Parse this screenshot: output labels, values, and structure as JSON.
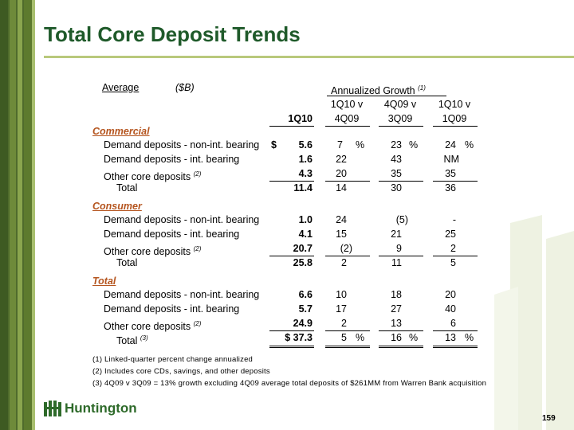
{
  "title": "Total Core Deposit Trends",
  "header": {
    "average": "Average",
    "unit": "($B)",
    "growth": "Annualized Growth",
    "growth_note": "(1)",
    "col1": "1Q10",
    "col2_top": "1Q10 v",
    "col2_bottom": "4Q09",
    "col3_top": "4Q09 v",
    "col3_bottom": "3Q09",
    "col4_top": "1Q10 v",
    "col4_bottom": "1Q09"
  },
  "sections": {
    "commercial": "Commercial",
    "consumer": "Consumer",
    "total": "Total"
  },
  "rows": {
    "com_dd_non": {
      "label": "Demand deposits - non-int. bearing",
      "cur": "$",
      "v1": "5.6",
      "v2": "7",
      "v2p": "%",
      "v3": "23",
      "v3p": "%",
      "v4": "24",
      "v4p": "%"
    },
    "com_dd_int": {
      "label": "Demand deposits - int. bearing",
      "v1": "1.6",
      "v2": "22",
      "v3": "43",
      "v4": "NM"
    },
    "com_other": {
      "label": "Other core deposits",
      "note": "(2)",
      "v1": "4.3",
      "v2": "20",
      "v3": "35",
      "v4": "35"
    },
    "com_total": {
      "label": "Total",
      "v1": "11.4",
      "v2": "14",
      "v3": "30",
      "v4": "36"
    },
    "con_dd_non": {
      "label": "Demand deposits - non-int. bearing",
      "v1": "1.0",
      "v2": "24",
      "v3": "(5)",
      "v4": "-"
    },
    "con_dd_int": {
      "label": "Demand deposits - int. bearing",
      "v1": "4.1",
      "v2": "15",
      "v3": "21",
      "v4": "25"
    },
    "con_other": {
      "label": "Other core deposits",
      "note": "(2)",
      "v1": "20.7",
      "v2": "(2)",
      "v3": "9",
      "v4": "2"
    },
    "con_total": {
      "label": "Total",
      "v1": "25.8",
      "v2": "2",
      "v3": "11",
      "v4": "5"
    },
    "tot_dd_non": {
      "label": "Demand deposits - non-int. bearing",
      "v1": "6.6",
      "v2": "10",
      "v3": "18",
      "v4": "20"
    },
    "tot_dd_int": {
      "label": "Demand deposits - int. bearing",
      "v1": "5.7",
      "v2": "17",
      "v3": "27",
      "v4": "40"
    },
    "tot_other": {
      "label": "Other core deposits",
      "note": "(2)",
      "v1": "24.9",
      "v2": "2",
      "v3": "13",
      "v4": "6"
    },
    "tot_total": {
      "label": "Total",
      "note": "(3)",
      "v1": "$ 37.3",
      "v2": "5",
      "v2p": "%",
      "v3": "16",
      "v3p": "%",
      "v4": "13",
      "v4p": "%"
    }
  },
  "footnotes": {
    "f1": "(1) Linked-quarter percent change annualized",
    "f2": "(2) Includes core CDs, savings, and other deposits",
    "f3": "(3) 4Q09 v 3Q09 = 13% growth excluding 4Q09 average total deposits of $261MM from Warren Bank acquisition"
  },
  "logo": {
    "text": "Huntington",
    "icon": "huntington-logo-icon"
  },
  "page_number": "159",
  "colors": {
    "title": "#1f5a2a",
    "section": "#b5551f",
    "sidebar": "#4f6b2c"
  }
}
